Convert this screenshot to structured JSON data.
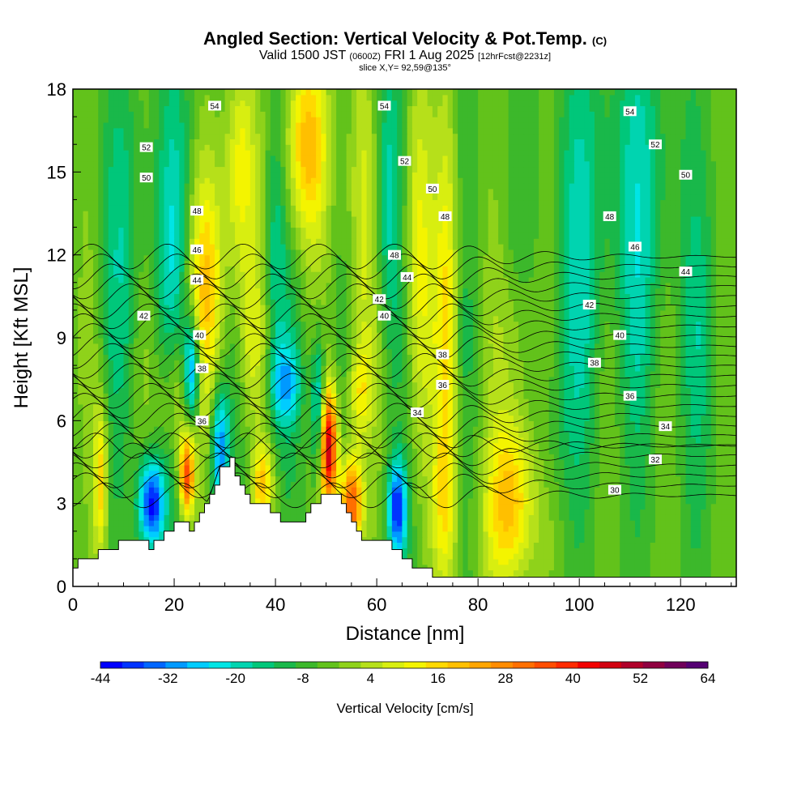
{
  "header": {
    "title_main": "Angled Section: Vertical Velocity & Pot.Temp.",
    "title_unit": "(C)",
    "valid_a": "Valid 1500 JST",
    "valid_b": "(0600Z)",
    "valid_c": "FRI 1 Aug 2025",
    "valid_d": "[12hrFcst@2231z]",
    "slice": "slice X,Y= 92,59@135°"
  },
  "chart_data": {
    "type": "heatmap",
    "xlabel": "Distance [nm]",
    "ylabel": "Height [Kft MSL]",
    "xlim": [
      0,
      131
    ],
    "ylim": [
      0,
      18
    ],
    "x_ticks": [
      "0",
      "20",
      "40",
      "60",
      "80",
      "100",
      "120"
    ],
    "y_ticks": [
      "0",
      "3",
      "6",
      "9",
      "12",
      "15",
      "18"
    ],
    "colorbar": {
      "label": "Vertical Velocity [cm/s]",
      "min": -44,
      "max": 64,
      "step": 4,
      "tick_labels": [
        "-44",
        "-32",
        "-20",
        "-8",
        "4",
        "16",
        "28",
        "40",
        "52",
        "64"
      ],
      "colors": [
        "#0000ff",
        "#0033ff",
        "#0066ff",
        "#0099ff",
        "#00ccff",
        "#00e5e5",
        "#00d4b0",
        "#00c77a",
        "#19b84a",
        "#3cb82b",
        "#62c21b",
        "#8fd21a",
        "#b6e01a",
        "#d8ee10",
        "#f4f400",
        "#ffd900",
        "#ffbf00",
        "#ffa500",
        "#ff8c00",
        "#ff6f00",
        "#ff4d00",
        "#ff2a00",
        "#f20000",
        "#d10010",
        "#b0002a",
        "#900040",
        "#70005a",
        "#550073"
      ]
    },
    "theta_contour_labels": [
      {
        "x": 28,
        "y": 17.4,
        "t": "54"
      },
      {
        "x": 61.5,
        "y": 17.4,
        "t": "54"
      },
      {
        "x": 110,
        "y": 17.2,
        "t": "54"
      },
      {
        "x": 14.5,
        "y": 15.9,
        "t": "52"
      },
      {
        "x": 65.5,
        "y": 15.4,
        "t": "52"
      },
      {
        "x": 115,
        "y": 16.0,
        "t": "52"
      },
      {
        "x": 14.5,
        "y": 14.8,
        "t": "50"
      },
      {
        "x": 71,
        "y": 14.4,
        "t": "50"
      },
      {
        "x": 121,
        "y": 14.9,
        "t": "50"
      },
      {
        "x": 24.5,
        "y": 13.6,
        "t": "48"
      },
      {
        "x": 73.5,
        "y": 13.4,
        "t": "48"
      },
      {
        "x": 106,
        "y": 13.4,
        "t": "48"
      },
      {
        "x": 24.5,
        "y": 12.2,
        "t": "46"
      },
      {
        "x": 111,
        "y": 12.3,
        "t": "46"
      },
      {
        "x": 63.5,
        "y": 12.0,
        "t": "48"
      },
      {
        "x": 66,
        "y": 11.2,
        "t": "44"
      },
      {
        "x": 24.5,
        "y": 11.1,
        "t": "44"
      },
      {
        "x": 121,
        "y": 11.4,
        "t": "44"
      },
      {
        "x": 60.5,
        "y": 10.4,
        "t": "42"
      },
      {
        "x": 102,
        "y": 10.2,
        "t": "42"
      },
      {
        "x": 14,
        "y": 9.8,
        "t": "42"
      },
      {
        "x": 61.5,
        "y": 9.8,
        "t": "40"
      },
      {
        "x": 25,
        "y": 9.1,
        "t": "40"
      },
      {
        "x": 108,
        "y": 9.1,
        "t": "40"
      },
      {
        "x": 73,
        "y": 8.4,
        "t": "38"
      },
      {
        "x": 25.5,
        "y": 7.9,
        "t": "38"
      },
      {
        "x": 103,
        "y": 8.1,
        "t": "38"
      },
      {
        "x": 73,
        "y": 7.3,
        "t": "36"
      },
      {
        "x": 110,
        "y": 6.9,
        "t": "36"
      },
      {
        "x": 25.5,
        "y": 6.0,
        "t": "36"
      },
      {
        "x": 68,
        "y": 6.3,
        "t": "34"
      },
      {
        "x": 117,
        "y": 5.8,
        "t": "34"
      },
      {
        "x": 115,
        "y": 4.6,
        "t": "32"
      },
      {
        "x": 107,
        "y": 3.5,
        "t": "30"
      }
    ]
  }
}
